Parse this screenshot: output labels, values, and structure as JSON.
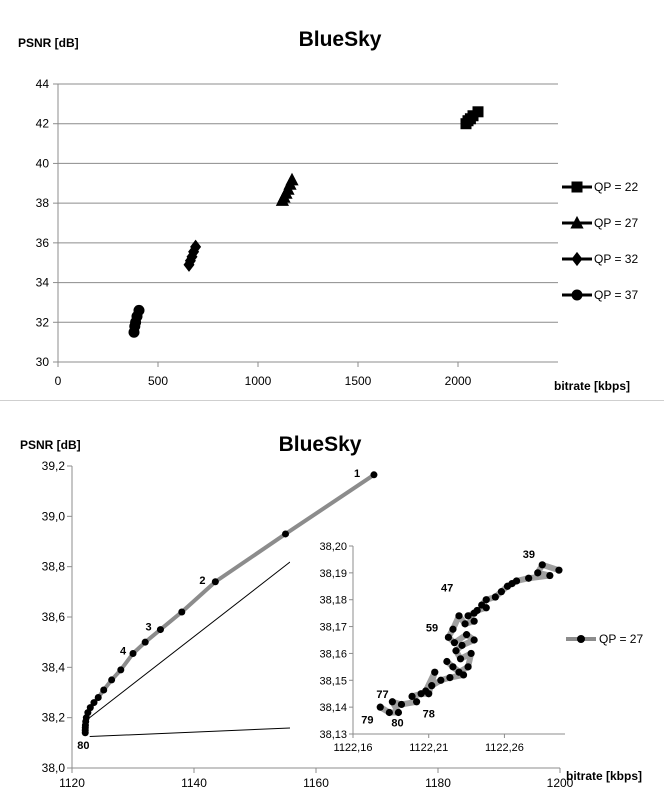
{
  "chart_data": [
    {
      "type": "scatter",
      "title": "BlueSky",
      "ylabel": "PSNR [dB]",
      "xlabel": "bitrate [kbps]",
      "xlim": [
        0,
        2500
      ],
      "ylim": [
        30,
        44
      ],
      "xticks": [
        "0",
        "500",
        "1000",
        "1500",
        "2000"
      ],
      "yticks": [
        "30",
        "32",
        "34",
        "36",
        "38",
        "40",
        "42",
        "44"
      ],
      "grid": "horizontal",
      "legend": "right",
      "series": [
        {
          "name": "QP = 22",
          "marker": "square",
          "x": [
            2040,
            2050,
            2062,
            2075,
            2100
          ],
          "y": [
            42.0,
            42.15,
            42.25,
            42.4,
            42.6
          ]
        },
        {
          "name": "QP = 27",
          "marker": "triangle",
          "x": [
            1122,
            1130,
            1140,
            1150,
            1160,
            1170
          ],
          "y": [
            38.14,
            38.3,
            38.5,
            38.7,
            38.95,
            39.17
          ]
        },
        {
          "name": "QP = 32",
          "marker": "diamond",
          "x": [
            655,
            662,
            670,
            678,
            688
          ],
          "y": [
            34.9,
            35.1,
            35.3,
            35.55,
            35.8
          ]
        },
        {
          "name": "QP = 37",
          "marker": "circle",
          "x": [
            380,
            384,
            388,
            395,
            405
          ],
          "y": [
            31.5,
            31.8,
            32.0,
            32.3,
            32.6
          ]
        }
      ]
    },
    {
      "type": "line",
      "title": "BlueSky",
      "ylabel": "PSNR [dB]",
      "xlabel": "bitrate [kbps]",
      "xlim": [
        1120,
        1200
      ],
      "ylim": [
        38.0,
        39.2
      ],
      "xticks": [
        "1120",
        "1140",
        "1160",
        "1180",
        "1200"
      ],
      "yticks": [
        "38,0",
        "38,2",
        "38,4",
        "38,6",
        "38,8",
        "39,0",
        "39,2"
      ],
      "grid": "none",
      "legend": "right",
      "series": [
        {
          "name": "QP = 27",
          "x": [
            1169.5,
            1155,
            1143.5,
            1138,
            1134.5,
            1132,
            1130,
            1128,
            1126.5,
            1125.2,
            1124.3,
            1123.6,
            1123.0,
            1122.6,
            1122.35,
            1122.25,
            1122.2,
            1122.18,
            1122.17,
            1122.17
          ],
          "y": [
            39.165,
            38.93,
            38.74,
            38.62,
            38.55,
            38.5,
            38.455,
            38.39,
            38.35,
            38.31,
            38.28,
            38.26,
            38.24,
            38.22,
            38.2,
            38.185,
            38.17,
            38.16,
            38.15,
            38.14
          ]
        }
      ],
      "point_labels": [
        {
          "text": "1",
          "x": 1169.5,
          "y": 39.165
        },
        {
          "text": "2",
          "x": 1143.5,
          "y": 38.74
        },
        {
          "text": "3",
          "x": 1134.5,
          "y": 38.55
        },
        {
          "text": "4",
          "x": 1130,
          "y": 38.455
        },
        {
          "text": "80",
          "x": 1122.17,
          "y": 38.14
        }
      ],
      "inset": {
        "xlim": [
          1122.16,
          1122.3
        ],
        "ylim": [
          38.13,
          38.2
        ],
        "xticks": [
          "1122,16",
          "1122,21",
          "1122,26"
        ],
        "yticks": [
          "38,13",
          "38,14",
          "38,15",
          "38,16",
          "38,17",
          "38,18",
          "38,19",
          "38,20"
        ],
        "x": [
          1122.296,
          1122.285,
          1122.282,
          1122.29,
          1122.276,
          1122.268,
          1122.265,
          1122.262,
          1122.258,
          1122.254,
          1122.248,
          1122.245,
          1122.248,
          1122.242,
          1122.24,
          1122.236,
          1122.24,
          1122.234,
          1122.23,
          1122.226,
          1122.223,
          1122.227,
          1122.235,
          1122.24,
          1122.232,
          1122.228,
          1122.231,
          1122.238,
          1122.236,
          1122.23,
          1122.222,
          1122.226,
          1122.233,
          1122.224,
          1122.218,
          1122.212,
          1122.208,
          1122.214,
          1122.21,
          1122.205,
          1122.199,
          1122.202,
          1122.192,
          1122.186,
          1122.19,
          1122.184,
          1122.178
        ],
        "y": [
          38.191,
          38.193,
          38.19,
          38.189,
          38.188,
          38.187,
          38.186,
          38.185,
          38.183,
          38.181,
          38.18,
          38.178,
          38.177,
          38.176,
          38.175,
          38.174,
          38.172,
          38.171,
          38.174,
          38.169,
          38.166,
          38.164,
          38.167,
          38.165,
          38.163,
          38.161,
          38.158,
          38.16,
          38.155,
          38.153,
          38.157,
          38.155,
          38.152,
          38.151,
          38.15,
          38.148,
          38.146,
          38.153,
          38.145,
          38.145,
          38.144,
          38.142,
          38.141,
          38.142,
          38.138,
          38.138,
          38.14
        ],
        "point_labels": [
          {
            "text": "39",
            "x": 1122.282,
            "y": 38.193
          },
          {
            "text": "47",
            "x": 1122.232,
            "y": 38.183
          },
          {
            "text": "59",
            "x": 1122.222,
            "y": 38.169
          },
          {
            "text": "77",
            "x": 1122.184,
            "y": 38.142
          },
          {
            "text": "78",
            "x": 1122.202,
            "y": 38.141
          },
          {
            "text": "79",
            "x": 1122.178,
            "y": 38.138
          },
          {
            "text": "80",
            "x": 1122.188,
            "y": 38.138
          }
        ]
      }
    }
  ]
}
